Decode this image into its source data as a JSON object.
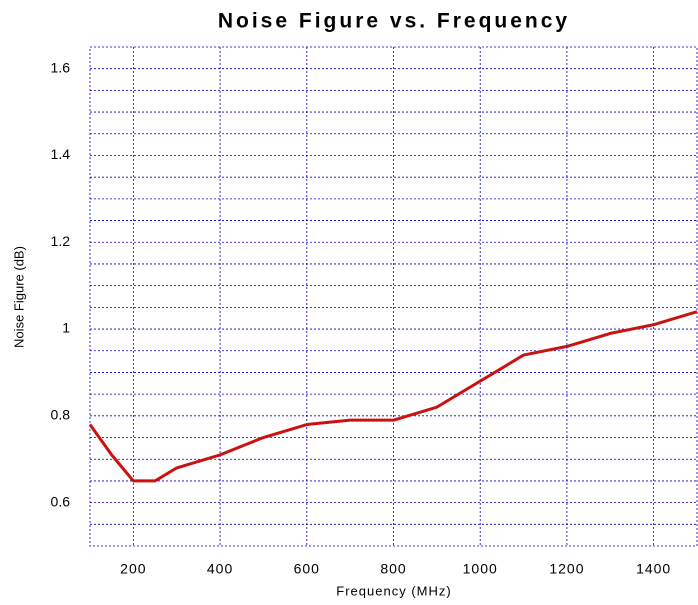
{
  "chart_data": {
    "type": "line",
    "title": "Noise Figure vs. Frequency",
    "x_label": "Frequency (MHz)",
    "y_label": "Noise Figure (dB)",
    "x": [
      100,
      150,
      200,
      250,
      300,
      400,
      500,
      600,
      700,
      800,
      900,
      1000,
      1100,
      1200,
      1300,
      1400,
      1500
    ],
    "series": [
      {
        "name": "Noise Figure",
        "color": "#cc1111",
        "values": [
          0.78,
          0.71,
          0.65,
          0.65,
          0.68,
          0.71,
          0.75,
          0.78,
          0.79,
          0.79,
          0.82,
          0.88,
          0.94,
          0.96,
          0.99,
          1.01,
          1.04
        ]
      }
    ],
    "xlim": [
      100,
      1500
    ],
    "xticks": [
      200,
      400,
      600,
      800,
      1000,
      1200,
      1400
    ],
    "ylim": [
      0.5,
      1.65
    ],
    "yticks": [
      0.6,
      0.8,
      1,
      1.2,
      1.4,
      1.6
    ],
    "yminorticks": [
      0.55,
      0.65,
      0.7,
      0.75,
      0.85,
      0.9,
      0.95,
      1.05,
      1.1,
      1.15,
      1.25,
      1.3,
      1.35,
      1.45,
      1.5,
      1.55
    ],
    "grid": true,
    "grid_color": "#0000cc"
  }
}
